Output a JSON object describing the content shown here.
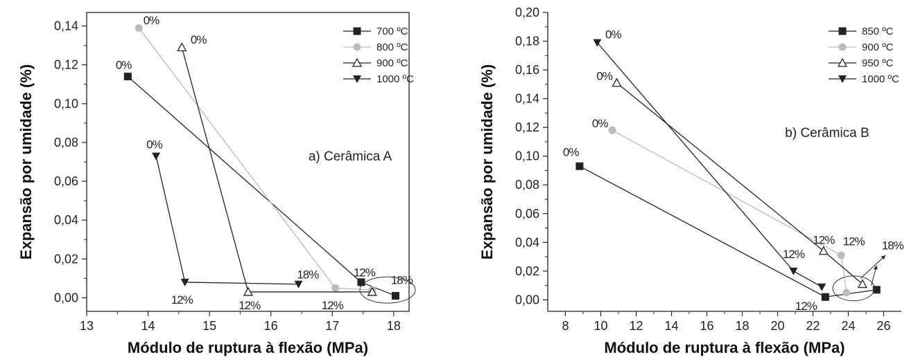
{
  "chart_data": [
    {
      "type": "line",
      "panel_label": "a) Cerâmica A",
      "xlabel": "Módulo de ruptura à flexão (MPa)",
      "ylabel": "Expansão por umidade (%)",
      "xlim": [
        13,
        18.25
      ],
      "ylim": [
        -0.007,
        0.147
      ],
      "xticks": [
        "13",
        "14",
        "15",
        "16",
        "17",
        "18"
      ],
      "yticks": [
        "0,00",
        "0,02",
        "0,04",
        "0,06",
        "0,08",
        "0,10",
        "0,12",
        "0,14"
      ],
      "legend_position": "top-right",
      "grid": false,
      "series": [
        {
          "name": "700 ºC",
          "marker": "square",
          "color": "#222222",
          "x": [
            13.67,
            17.47,
            18.03
          ],
          "y": [
            0.114,
            0.008,
            0.001
          ]
        },
        {
          "name": "800 ºC",
          "marker": "circle",
          "color": "#bbbbbb",
          "x": [
            13.85,
            17.05,
            17.65
          ],
          "y": [
            0.139,
            0.005,
            0.004
          ]
        },
        {
          "name": "900 ºC",
          "marker": "triangle-up-open",
          "color": "#222222",
          "x": [
            14.55,
            15.63,
            17.65
          ],
          "y": [
            0.129,
            0.003,
            0.003
          ]
        },
        {
          "name": "1000 ºC",
          "marker": "triangle-down",
          "color": "#222222",
          "x": [
            14.13,
            14.6,
            16.45
          ],
          "y": [
            0.073,
            0.008,
            0.007
          ]
        }
      ],
      "annotations": [
        {
          "text": "0%",
          "x": 14.05,
          "y": 0.141
        },
        {
          "text": "0%",
          "x": 14.82,
          "y": 0.131
        },
        {
          "text": "0%",
          "x": 13.6,
          "y": 0.118
        },
        {
          "text": "0%",
          "x": 14.1,
          "y": 0.077
        },
        {
          "text": "12%",
          "x": 17.52,
          "y": 0.011
        },
        {
          "text": "18%",
          "x": 16.6,
          "y": 0.01
        },
        {
          "text": "18%",
          "x": 18.13,
          "y": 0.007
        },
        {
          "text": "12%",
          "x": 14.55,
          "y": -0.003
        },
        {
          "text": "12%",
          "x": 15.65,
          "y": -0.006
        },
        {
          "text": "12%",
          "x": 17.0,
          "y": -0.006
        }
      ]
    },
    {
      "type": "line",
      "panel_label": "b) Cerâmica B",
      "xlabel": "Módulo de ruptura à flexão (MPa)",
      "ylabel": "Expansão por umidade (%)",
      "xlim": [
        7,
        27
      ],
      "ylim": [
        -0.008,
        0.2
      ],
      "xticks": [
        "8",
        "10",
        "12",
        "14",
        "16",
        "18",
        "20",
        "22",
        "24",
        "26"
      ],
      "yticks": [
        "0,00",
        "0,02",
        "0,04",
        "0,06",
        "0,08",
        "0,10",
        "0,12",
        "0,14",
        "0,16",
        "0,18",
        "0,20"
      ],
      "legend_position": "top-right",
      "grid": false,
      "series": [
        {
          "name": "850 ºC",
          "marker": "square",
          "color": "#222222",
          "x": [
            8.8,
            22.7,
            25.6
          ],
          "y": [
            0.093,
            0.002,
            0.007
          ]
        },
        {
          "name": "900 ºC",
          "marker": "circle",
          "color": "#bbbbbb",
          "x": [
            10.65,
            23.6,
            23.9
          ],
          "y": [
            0.118,
            0.031,
            0.005
          ]
        },
        {
          "name": "950 ºC",
          "marker": "triangle-up-open",
          "color": "#222222",
          "x": [
            10.9,
            22.6,
            24.8
          ],
          "y": [
            0.151,
            0.034,
            0.011
          ]
        },
        {
          "name": "1000 ºC",
          "marker": "triangle-down",
          "color": "#222222",
          "x": [
            9.8,
            20.9,
            22.5
          ],
          "y": [
            0.179,
            0.02,
            0.009
          ]
        }
      ],
      "annotations": [
        {
          "text": "0%",
          "x": 10.7,
          "y": 0.182
        },
        {
          "text": "0%",
          "x": 10.2,
          "y": 0.153
        },
        {
          "text": "0%",
          "x": 9.95,
          "y": 0.12
        },
        {
          "text": "0%",
          "x": 8.3,
          "y": 0.1
        },
        {
          "text": "12%",
          "x": 22.6,
          "y": 0.039
        },
        {
          "text": "12%",
          "x": 24.3,
          "y": 0.038
        },
        {
          "text": "12%",
          "x": 20.9,
          "y": 0.029
        },
        {
          "text": "18%",
          "x": 26.5,
          "y": 0.035
        },
        {
          "text": "12%",
          "x": 21.6,
          "y": -0.007
        }
      ]
    }
  ]
}
